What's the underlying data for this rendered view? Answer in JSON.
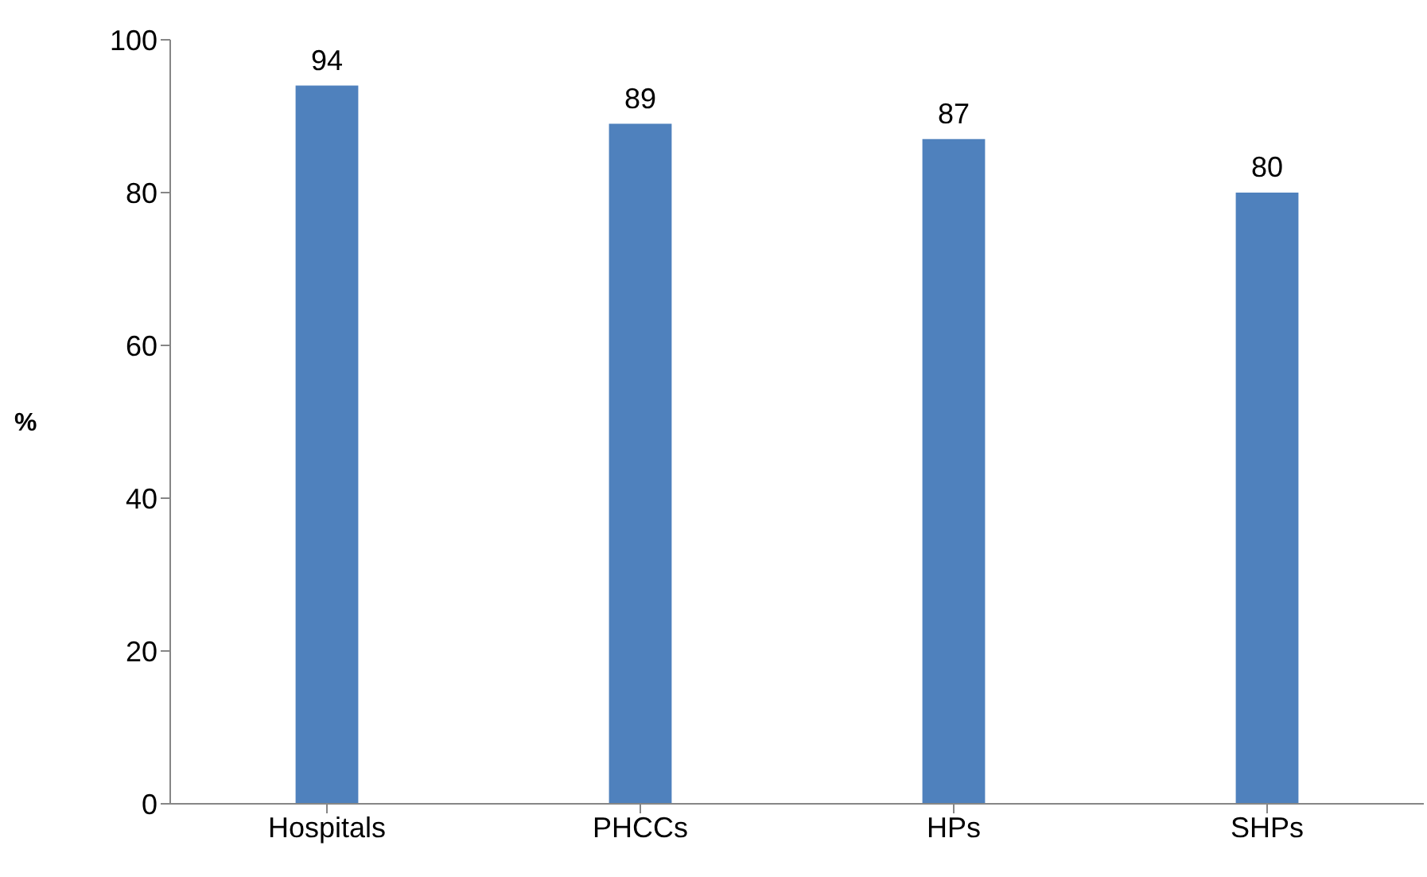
{
  "chart_data": {
    "type": "bar",
    "ylabel": "%",
    "categories": [
      "Hospitals",
      "PHCCs",
      "HPs",
      "SHPs"
    ],
    "values": [
      94,
      89,
      87,
      80
    ],
    "color": "#4f81bd",
    "ylim": [
      0,
      100
    ],
    "yticks": [
      0,
      20,
      40,
      60,
      80,
      100
    ],
    "data_labels": true,
    "grid": false,
    "legend": false
  }
}
